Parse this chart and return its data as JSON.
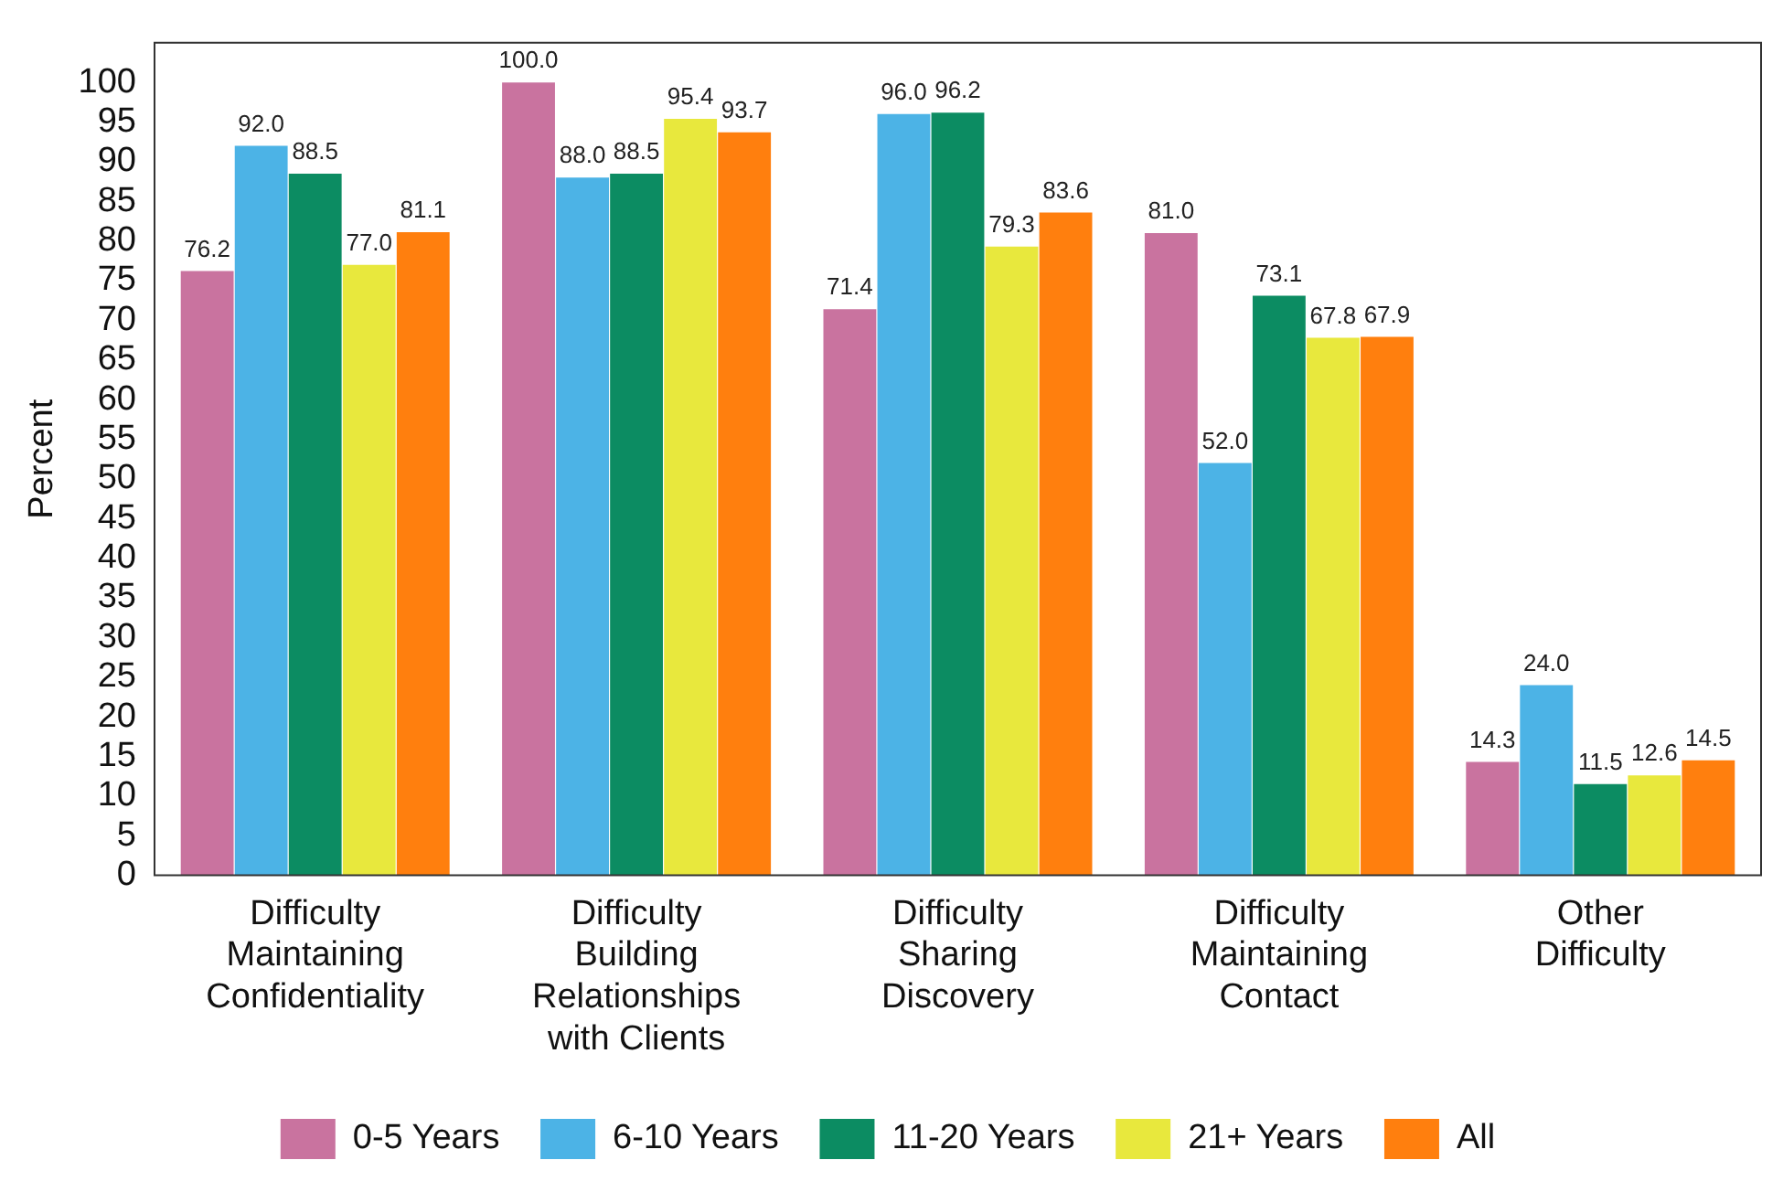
{
  "chart_data": {
    "type": "bar",
    "ylabel": "Percent",
    "categories": [
      "Difficulty Maintaining Confidentiality",
      "Difficulty Building Relationships with Clients",
      "Difficulty Sharing Discovery",
      "Difficulty Maintaining Contact",
      "Other Difficulty"
    ],
    "series": [
      {
        "name": "0-5 Years",
        "color": "#c9739f",
        "values": [
          76.2,
          100.0,
          71.4,
          81.0,
          14.3
        ],
        "value_labels": [
          "76.2",
          "100.0",
          "71.4",
          "81.0",
          "14.3"
        ]
      },
      {
        "name": "6-10 Years",
        "color": "#4cb3e6",
        "values": [
          92.0,
          88.0,
          96.0,
          52.0,
          24.0
        ],
        "value_labels": [
          "92.0",
          "88.0",
          "96.0",
          "52.0",
          "24.0"
        ]
      },
      {
        "name": "11-20 Years",
        "color": "#0c8c62",
        "values": [
          88.5,
          88.5,
          96.2,
          73.1,
          11.5
        ],
        "value_labels": [
          "88.5",
          "88.5",
          "96.2",
          "73.1",
          "11.5"
        ]
      },
      {
        "name": "21+ Years",
        "color": "#e8e83d",
        "values": [
          77.0,
          95.4,
          79.3,
          67.8,
          12.6
        ],
        "value_labels": [
          "77.0",
          "95.4",
          "79.3",
          "67.8",
          "12.6"
        ]
      },
      {
        "name": "All",
        "color": "#ff7f0e",
        "values": [
          81.1,
          93.7,
          83.6,
          67.9,
          14.5
        ],
        "value_labels": [
          "81.1",
          "93.7",
          "83.6",
          "67.9",
          "14.5"
        ]
      }
    ],
    "ylim": [
      0,
      105
    ],
    "yticks": [
      0,
      5,
      10,
      15,
      20,
      25,
      30,
      35,
      40,
      45,
      50,
      55,
      60,
      65,
      70,
      75,
      80,
      85,
      90,
      95,
      100
    ],
    "grid": false,
    "legend": "bottom"
  }
}
